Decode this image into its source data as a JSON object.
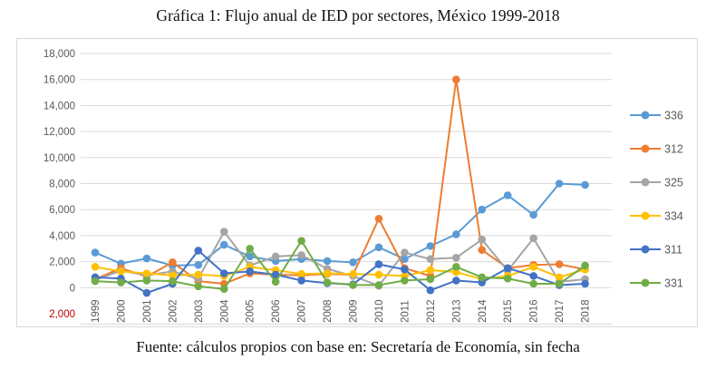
{
  "title": "Gráfica 1: Flujo anual de IED por sectores, México 1999-2018",
  "caption": "Fuente: cálculos propios con base en: Secretaría de Economía, sin fecha",
  "chart_data": {
    "type": "line",
    "title": "Gráfica 1: Flujo anual de IED por sectores, México 1999-2018",
    "categories": [
      "1999",
      "2000",
      "2001",
      "2002",
      "2003",
      "2004",
      "2005",
      "2006",
      "2007",
      "2008",
      "2009",
      "2010",
      "2011",
      "2012",
      "2013",
      "2014",
      "2015",
      "2016",
      "2017",
      "2018"
    ],
    "series": [
      {
        "name": "336",
        "color": "#5B9BD5",
        "values": [
          2700,
          1850,
          2250,
          1700,
          1750,
          3300,
          2400,
          2050,
          2200,
          2050,
          1950,
          3100,
          2200,
          3200,
          4100,
          6000,
          7100,
          5600,
          8000,
          7900
        ]
      },
      {
        "name": "312",
        "color": "#ED7D31",
        "values": [
          650,
          1500,
          850,
          1950,
          500,
          300,
          1100,
          1000,
          950,
          1050,
          1000,
          5300,
          1500,
          900,
          16000,
          2900,
          1500,
          1750,
          1800,
          1400
        ]
      },
      {
        "name": "325",
        "color": "#A5A5A5",
        "values": [
          600,
          1300,
          950,
          1250,
          700,
          4300,
          1700,
          2400,
          2500,
          1450,
          900,
          150,
          2700,
          2200,
          2300,
          3700,
          1300,
          3800,
          450,
          650
        ]
      },
      {
        "name": "334",
        "color": "#FFC000",
        "values": [
          1600,
          1250,
          1100,
          950,
          1000,
          900,
          1600,
          1350,
          1050,
          1100,
          1050,
          1000,
          900,
          1350,
          1200,
          650,
          900,
          1600,
          800,
          1400
        ]
      },
      {
        "name": "311",
        "color": "#4472C4",
        "values": [
          800,
          700,
          -400,
          300,
          2850,
          1100,
          1250,
          1000,
          550,
          350,
          250,
          1800,
          1400,
          -200,
          550,
          400,
          1500,
          900,
          200,
          300
        ]
      },
      {
        "name": "331",
        "color": "#70AD47",
        "values": [
          500,
          400,
          550,
          500,
          100,
          -100,
          3000,
          450,
          3600,
          400,
          200,
          200,
          550,
          650,
          1600,
          800,
          700,
          300,
          300,
          1700
        ]
      }
    ],
    "ylim": [
      -2000,
      18000
    ],
    "ytick_step": 2000,
    "grid": true,
    "legend_position": "right",
    "tick_label_color": "#595959",
    "negative_tick_color": "#c00000",
    "gridline_color": "#d9d9d9"
  }
}
